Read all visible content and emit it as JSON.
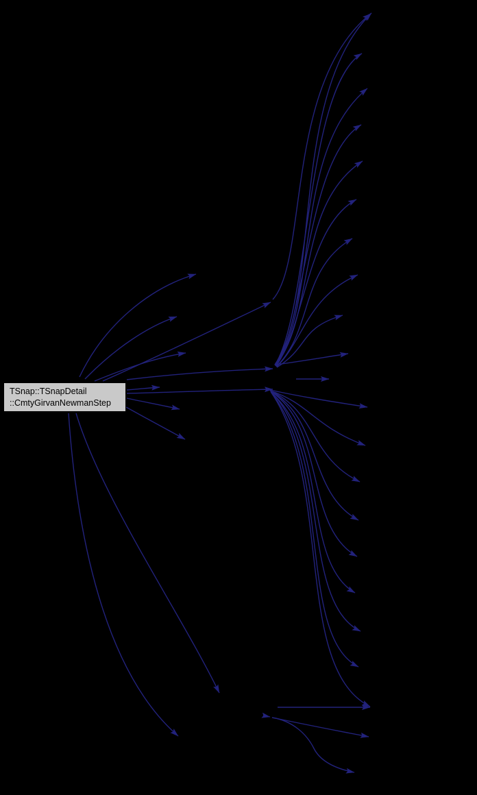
{
  "diagram": {
    "background": "#000000",
    "edge_color": "#22227c",
    "node": {
      "label_line1": "TSnap::TSnapDetail",
      "label_line2": "::CmtyGirvanNewmanStep",
      "fill": "#c9c9c9",
      "border": "#000000"
    },
    "edges": [
      "M 116,550 C 152,474 218,420 286,400",
      "M 124,553 C 168,508 216,476 258,462",
      "M 138,556 C 192,534 232,521 271,515",
      "M 185,569 C 200,568 216,566 233,565",
      "M 185,581 C 208,586 235,591 262,597",
      "M 184,594 C 213,610 244,627 270,641",
      "M 111,603 C 148,726 262,892 320,1011",
      "M 100,603 C 112,780 152,980 260,1074",
      "M 185,554 C 260,545 340,540 398,538",
      "M 185,574 C 260,572 335,569 398,568",
      "M 150,556 C 240,516 330,472 395,441",
      "M 398,437 C 450,380 415,120 541,20",
      "M 401,532 C 470,432 420,140 542,19",
      "M 401,533 C 452,452 446,128 528,78",
      "M 402,533 C 466,440 426,220 536,129",
      "M 402,534 C 448,462 448,230 527,182",
      "M 402,534 C 462,456 430,300 529,235",
      "M 403,534 C 446,472 448,330 520,291",
      "M 403,535 C 458,482 436,394 514,348",
      "M 404,535 C 443,496 448,434 522,401",
      "M 404,536 C 452,506 436,479 500,460",
      "M 403,532 C 440,527 475,521 508,516",
      "M 432,553 L 480,553",
      "M 394,569 C 440,579 478,585 536,594",
      "M 394,570 C 452,589 458,622 533,650",
      "M 394,570 C 462,600 452,668 525,703",
      "M 395,571 C 470,612 448,718 523,759",
      "M 395,571 C 476,624 443,768 521,812",
      "M 395,572 C 480,645 440,820 518,865",
      "M 396,572 C 482,662 438,878 526,921",
      "M 396,573 C 484,684 434,928 523,973",
      "M 396,573 C 486,706 428,975 540,1031",
      "M 405,1032 L 540,1032",
      "M 384,1044 L 394,1046",
      "M 397,1047 C 440,1056 490,1066 538,1075",
      "M 397,1047 C 428,1052 448,1072 458,1092 C 468,1112 492,1122 517,1127"
    ]
  }
}
